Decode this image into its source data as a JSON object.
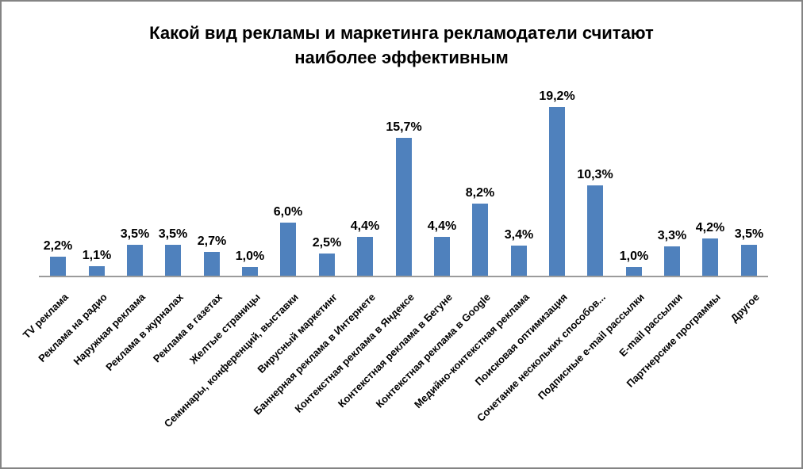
{
  "title": {
    "line1": "Какой вид рекламы и маркетинга рекламодатели считают",
    "line2": "наиболее эффективным"
  },
  "colors": {
    "bar": "#4F81BD",
    "axis": "#9B9B9B",
    "frame_border": "#848484",
    "text": "#000000",
    "background": "#FFFFFF"
  },
  "chart_data": {
    "type": "bar",
    "title": "Какой вид рекламы и маркетинга рекламодатели считают наиболее эффективным",
    "xlabel": "",
    "ylabel": "",
    "ylim": [
      0,
      21
    ],
    "grid": false,
    "legend": false,
    "value_format": "comma-decimal percent",
    "categories": [
      "TV реклама",
      "Реклама на радио",
      "Наружная реклама",
      "Реклама в журналах",
      "Реклама в газетах",
      "Желтые страницы",
      "Семинары, конференций, выставки",
      "Вирусный маркетинг",
      "Баннерная реклама в Интернете",
      "Контекстная реклама в Яндексе",
      "Контекстная реклама в Бегуне",
      "Контекстная реклама в Google",
      "Медийно-контекстная реклама",
      "Поисковая оптимизация",
      "Сочетание нескольких способов...",
      "Подписные e-mail рассылки",
      "E-mail рассылки",
      "Партнерские программы",
      "Другое"
    ],
    "values": [
      2.2,
      1.1,
      3.5,
      3.5,
      2.7,
      1.0,
      6.0,
      2.5,
      4.4,
      15.7,
      4.4,
      8.2,
      3.4,
      19.2,
      10.3,
      1.0,
      3.3,
      4.2,
      3.5
    ],
    "data_labels": [
      "2,2%",
      "1,1%",
      "3,5%",
      "3,5%",
      "2,7%",
      "1,0%",
      "6,0%",
      "2,5%",
      "4,4%",
      "15,7%",
      "4,4%",
      "8,2%",
      "3,4%",
      "19,2%",
      "10,3%",
      "1,0%",
      "3,3%",
      "4,2%",
      "3,5%"
    ]
  }
}
